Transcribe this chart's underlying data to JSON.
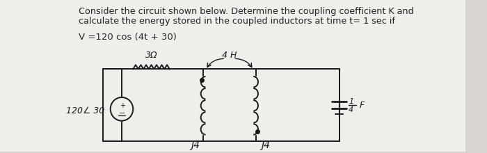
{
  "bg_color": "#d8d5d0",
  "paper_color": "#f0eeeb",
  "line_color": "#1a1a1a",
  "text_color": "#222222",
  "title_line1": "Consider the circuit shown below. Determine the coupling coefficient K and",
  "title_line2": "calculate the energy stored in the coupled inductors at time t= 1 sec if",
  "equation": "V =120 cos (4t + 30)",
  "source_label": "120∠ 30",
  "resistor_label": "3Ω",
  "ind1_label": "J4",
  "ind2_label": "J4",
  "mutual_label": "4 H",
  "cap_label_num": "1",
  "cap_label_den": "4",
  "cap_label_unit": "F",
  "title_fontsize": 9.2,
  "eq_fontsize": 9.5,
  "circuit_fontsize": 10
}
